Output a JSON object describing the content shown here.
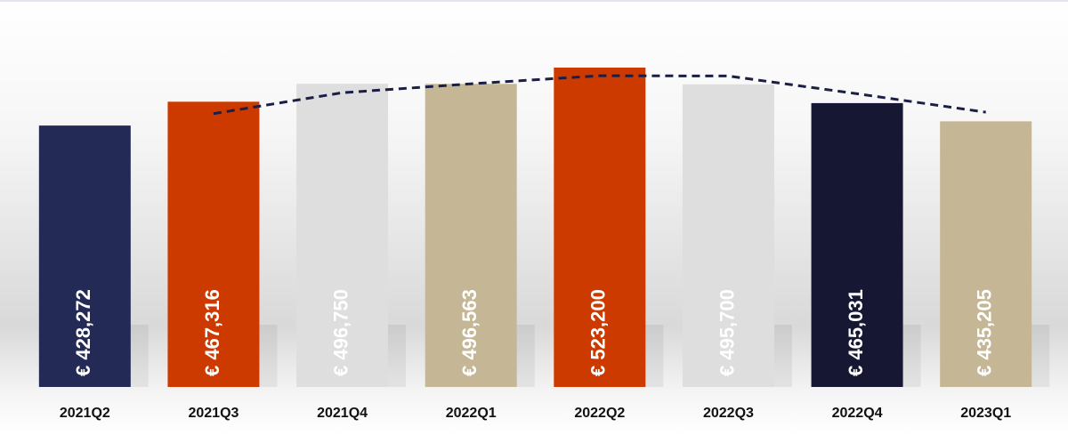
{
  "chart_data": {
    "type": "bar",
    "categories": [
      "2021Q2",
      "2021Q3",
      "2021Q4",
      "2022Q1",
      "2022Q2",
      "2022Q3",
      "2022Q4",
      "2023Q1"
    ],
    "values": [
      428272,
      467316,
      496750,
      496563,
      523200,
      495700,
      465031,
      435205
    ],
    "value_labels": [
      "€ 428,272",
      "€ 467,316",
      "€ 496,750",
      "€ 496,563",
      "€ 523,200",
      "€ 495,700",
      "€ 465,031",
      "€ 435,205"
    ],
    "colors": [
      "#232a55",
      "#cc3a00",
      "#dedede",
      "#c5b796",
      "#cc3a00",
      "#dedede",
      "#161833",
      "#c5b796"
    ],
    "line": {
      "type": "line",
      "values": [
        null,
        447794,
        482033,
        496657,
        509882,
        509450,
        480366,
        450118
      ],
      "color": "#1b1f45",
      "dashed": true
    }
  }
}
